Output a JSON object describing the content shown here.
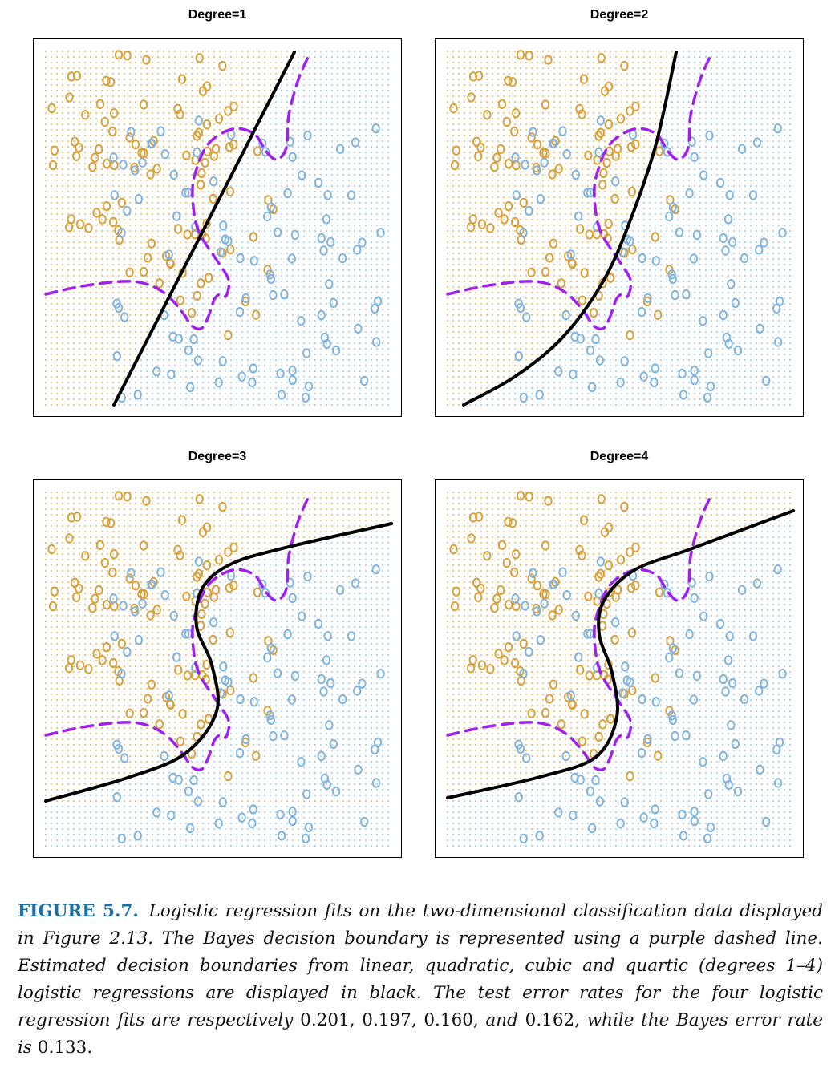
{
  "figure": {
    "panels": [
      {
        "title": "Degree=1",
        "degree": 1
      },
      {
        "title": "Degree=2",
        "degree": 2
      },
      {
        "title": "Degree=3",
        "degree": 3
      },
      {
        "title": "Degree=4",
        "degree": 4
      }
    ],
    "colors": {
      "class_orange": "#d9a03a",
      "class_blue": "#7fb3e0",
      "bayes_boundary": "#a020f0",
      "fitted_boundary": "#000000"
    },
    "point_marker": "o"
  },
  "chart_data": [
    {
      "type": "scatter",
      "title": "Degree=1",
      "classes": [
        "orange",
        "blue"
      ],
      "boundaries": [
        "Bayes decision boundary (purple dashed)",
        "logistic regression degree 1 (black)"
      ]
    },
    {
      "type": "scatter",
      "title": "Degree=2",
      "classes": [
        "orange",
        "blue"
      ],
      "boundaries": [
        "Bayes decision boundary (purple dashed)",
        "logistic regression degree 2 (black)"
      ]
    },
    {
      "type": "scatter",
      "title": "Degree=3",
      "classes": [
        "orange",
        "blue"
      ],
      "boundaries": [
        "Bayes decision boundary (purple dashed)",
        "logistic regression degree 3 (black)"
      ]
    },
    {
      "type": "scatter",
      "title": "Degree=4",
      "classes": [
        "orange",
        "blue"
      ],
      "boundaries": [
        "Bayes decision boundary (purple dashed)",
        "logistic regression degree 4 (black)"
      ]
    }
  ],
  "caption": {
    "label": "FIGURE 5.7.",
    "text_1": "Logistic regression fits on the two-dimensional classification data displayed in Figure 2.13. The Bayes decision boundary is represented using a purple dashed line. Estimated decision boundaries from linear, quadratic, cubic and quartic (degrees 1–4) logistic regressions are displayed in black. The test error rates for the four logistic regression fits are respectively",
    "rate_1": "0.201,",
    "rate_2": "0.197,",
    "rate_3": "0.160,",
    "and_word": "and",
    "rate_4": "0.162,",
    "text_2": "while the Bayes error rate is",
    "bayes_rate": "0.133."
  }
}
